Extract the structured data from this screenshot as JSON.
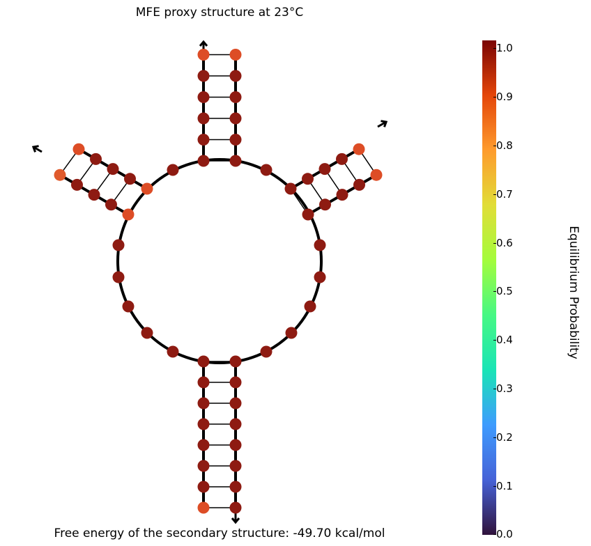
{
  "title": "MFE proxy structure at 23°C",
  "footer": "Free energy of the secondary structure: -49.70 kcal/mol",
  "colorbar": {
    "label": "Equilibrium Probability",
    "ticks": [
      "1.0",
      "0.9",
      "0.8",
      "0.7",
      "0.6",
      "0.5",
      "0.4",
      "0.3",
      "0.2",
      "0.1",
      "0.0"
    ],
    "colors": [
      "#7a0403",
      "#e4460a",
      "#fe9b2d",
      "#e1dd37",
      "#a4fc3c",
      "#46f884",
      "#1ae4b6",
      "#3e9bfe",
      "#4662d7",
      "#30123b"
    ]
  },
  "colors": {
    "high": "#8e1b12",
    "end": "#dd4d26",
    "end_light": "#e05a2c",
    "mid": "#c23a1c",
    "backbone": "#000000"
  }
}
